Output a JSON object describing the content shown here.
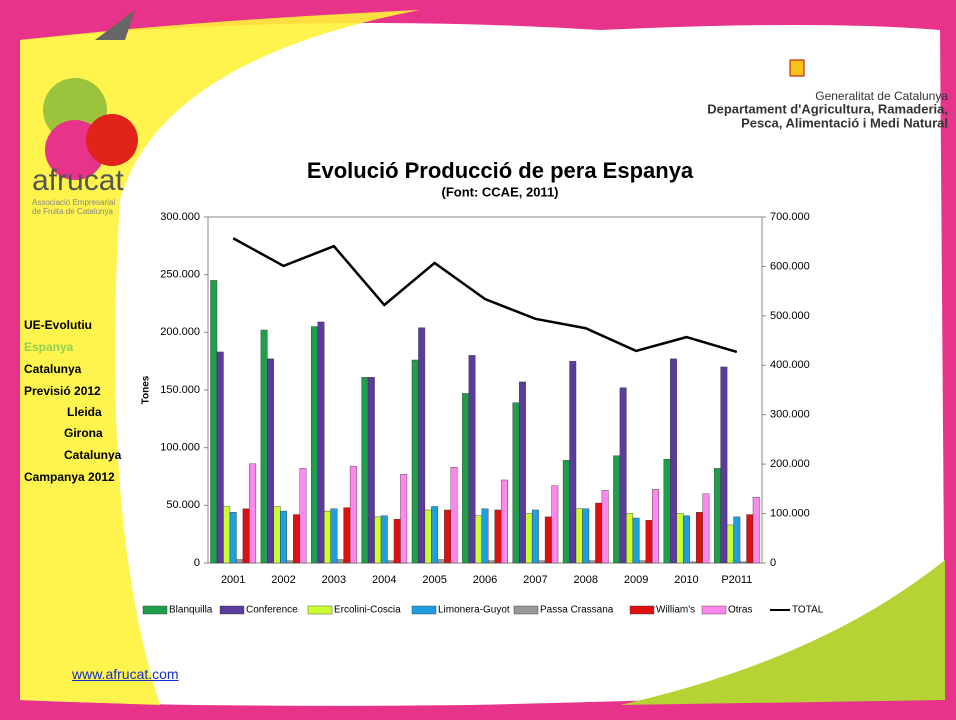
{
  "slide": {
    "logo": "afrucat",
    "logo_subtitle": [
      "Associació Empresarial",
      "de Fruita de Catalunya"
    ],
    "org": [
      "Generalitat de Catalunya",
      "Departament d'Agricultura, Ramaderia,",
      "Pesca, Alimentació i Medi Natural"
    ],
    "menu": [
      "UE-Evolutiu",
      "Espanya",
      "Catalunya",
      "Previsió 2012",
      "Lleida",
      "Girona",
      "Catalunya",
      "Campanya 2012"
    ],
    "url": "www.afrucat.com"
  },
  "chart_data": {
    "type": "bar",
    "title": "Evolució Producció de pera Espanya",
    "subtitle": "(Font: CCAE, 2011)",
    "y_label": "Tones",
    "categories": [
      "2001",
      "2002",
      "2003",
      "2004",
      "2005",
      "2006",
      "2007",
      "2008",
      "2009",
      "2010",
      "P2011"
    ],
    "series": [
      {
        "name": "Blanquilla",
        "color": "#1f9e4c",
        "values": [
          245000,
          202000,
          205000,
          161000,
          176000,
          147000,
          139000,
          89000,
          93000,
          90000,
          82000
        ]
      },
      {
        "name": "Conference",
        "color": "#5b3c9c",
        "values": [
          183000,
          177000,
          209000,
          161000,
          204000,
          180000,
          157000,
          175000,
          152000,
          177000,
          170000
        ]
      },
      {
        "name": "Ercolini-Coscia",
        "color": "#ccff33",
        "values": [
          49000,
          49000,
          45000,
          40000,
          46000,
          41000,
          43000,
          47000,
          43000,
          43000,
          33000
        ]
      },
      {
        "name": "Limonera-Guyot",
        "color": "#1ea0e0",
        "values": [
          44000,
          45000,
          47000,
          41000,
          49000,
          47000,
          46000,
          47000,
          39000,
          41000,
          40000
        ]
      },
      {
        "name": "Passa Crassana",
        "color": "#999999",
        "values": [
          3000,
          2000,
          3000,
          2000,
          3000,
          2000,
          2000,
          2000,
          2000,
          1000,
          1000
        ]
      },
      {
        "name": "William's",
        "color": "#e01010",
        "values": [
          47000,
          42000,
          48000,
          38000,
          46000,
          46000,
          40000,
          52000,
          37000,
          44000,
          42000
        ]
      },
      {
        "name": "Otras",
        "color": "#ff88ee",
        "values": [
          86000,
          82000,
          84000,
          77000,
          83000,
          72000,
          67000,
          63000,
          64000,
          60000,
          57000
        ]
      },
      {
        "name": "TOTAL",
        "color": "#000000",
        "type": "line",
        "axis": "y2",
        "values": [
          657000,
          601000,
          641000,
          522000,
          607000,
          534000,
          494000,
          475000,
          429000,
          457000,
          427000
        ]
      }
    ],
    "ylim": [
      0,
      300000
    ],
    "yticks": [
      {
        "value": 0,
        "label": "0"
      },
      {
        "value": 50000,
        "label": "50.000"
      },
      {
        "value": 100000,
        "label": "100.000"
      },
      {
        "value": 150000,
        "label": "150.000"
      },
      {
        "value": 200000,
        "label": "200.000"
      },
      {
        "value": 250000,
        "label": "250.000"
      },
      {
        "value": 300000,
        "label": "300.000"
      }
    ],
    "y2lim": [
      0,
      700000
    ],
    "y2ticks": [
      {
        "value": 0,
        "label": "0"
      },
      {
        "value": 100000,
        "label": "100.000"
      },
      {
        "value": 200000,
        "label": "200.000"
      },
      {
        "value": 300000,
        "label": "300.000"
      },
      {
        "value": 400000,
        "label": "400.000"
      },
      {
        "value": 500000,
        "label": "500.000"
      },
      {
        "value": 600000,
        "label": "600.000"
      },
      {
        "value": 700000,
        "label": "700.000"
      }
    ],
    "grid": false
  }
}
